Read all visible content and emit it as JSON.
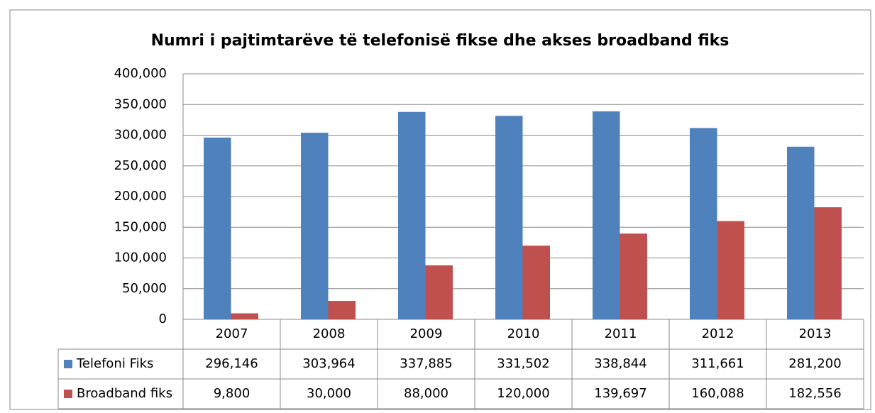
{
  "chart_data": {
    "type": "bar",
    "title": "Numri i pajtimtarëve të telefonisë fikse dhe akses broadband  fiks",
    "categories": [
      "2007",
      "2008",
      "2009",
      "2010",
      "2011",
      "2012",
      "2013"
    ],
    "series": [
      {
        "name": "Telefoni Fiks",
        "color": "#4f81bd",
        "values": [
          296146,
          303964,
          337885,
          331502,
          338844,
          311661,
          281200
        ],
        "value_labels": [
          "296,146",
          "303,964",
          "337,885",
          "331,502",
          "338,844",
          "311,661",
          "281,200"
        ]
      },
      {
        "name": "Broadband fiks",
        "color": "#c0504d",
        "values": [
          9800,
          30000,
          88000,
          120000,
          139697,
          160088,
          182556
        ],
        "value_labels": [
          "9,800",
          "30,000",
          "88,000",
          "120,000",
          "139,697",
          "160,088",
          "182,556"
        ]
      }
    ],
    "ylim": [
      0,
      400000
    ],
    "yticks": [
      0,
      {
        "value": 50000,
        "label": "50,000"
      },
      {
        "value": 100000,
        "label": "100,000"
      },
      {
        "value": 150000,
        "label": "150,000"
      },
      {
        "value": 200000,
        "label": "200,000"
      },
      {
        "value": 250000,
        "label": "250,000"
      },
      {
        "value": 300000,
        "label": "300,000"
      },
      {
        "value": 350000,
        "label": "350,000"
      },
      {
        "value": 400000,
        "label": "400,000"
      }
    ],
    "grid": true
  }
}
